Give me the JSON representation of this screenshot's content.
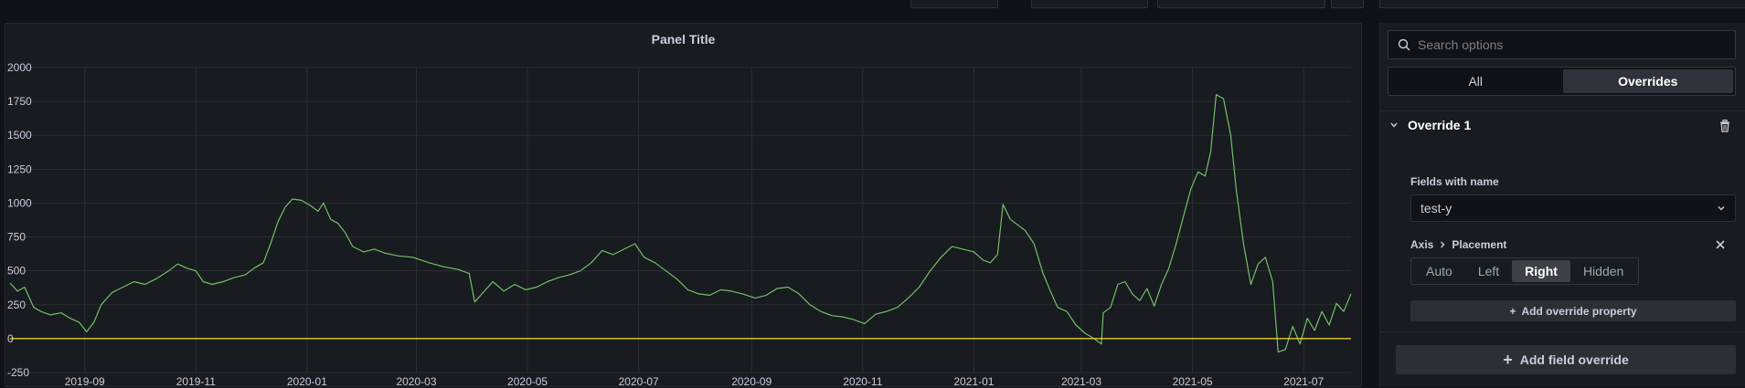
{
  "panel": {
    "title": "Panel Title"
  },
  "options": {
    "search": {
      "placeholder": "Search options"
    },
    "tabs": [
      {
        "label": "All",
        "active": false
      },
      {
        "label": "Overrides",
        "active": true
      }
    ],
    "override": {
      "title": "Override 1",
      "matcher_label": "Fields with name",
      "matcher_value": "test-y",
      "property_path": [
        "Axis",
        "Placement"
      ],
      "placement_options": [
        {
          "label": "Auto",
          "active": false
        },
        {
          "label": "Left",
          "active": false
        },
        {
          "label": "Right",
          "active": true
        },
        {
          "label": "Hidden",
          "active": false
        }
      ],
      "add_property_label": "Add override property"
    },
    "add_field_override_label": "Add field override"
  },
  "colors": {
    "series": "#73bf69",
    "zero_line": "#fade2a",
    "grid": "#2b2e33"
  },
  "chart_data": {
    "type": "line",
    "title": "Panel Title",
    "xlabel": "",
    "ylabel": "",
    "ylim": [
      -250,
      2000
    ],
    "y_ticks": [
      "-250",
      "0",
      "250",
      "500",
      "750",
      "1000",
      "1250",
      "1500",
      "1750",
      "2000"
    ],
    "y_tick_values": [
      -250,
      0,
      250,
      500,
      750,
      1000,
      1250,
      1500,
      1750,
      2000
    ],
    "x_ticks": [
      "2019-09",
      "2019-11",
      "2020-01",
      "2020-03",
      "2020-05",
      "2020-07",
      "2020-09",
      "2020-11",
      "2021-01",
      "2021-03",
      "2021-05",
      "2021-07"
    ],
    "xlim": [
      "2019-07-22",
      "2021-07-27"
    ],
    "grid": true,
    "series": [
      {
        "points": [
          [
            "2019-07-22",
            410
          ],
          [
            "2019-07-26",
            350
          ],
          [
            "2019-07-30",
            380
          ],
          [
            "2019-08-04",
            230
          ],
          [
            "2019-08-08",
            200
          ],
          [
            "2019-08-13",
            175
          ],
          [
            "2019-08-19",
            190
          ],
          [
            "2019-08-24",
            150
          ],
          [
            "2019-08-29",
            120
          ],
          [
            "2019-09-02",
            50
          ],
          [
            "2019-09-06",
            120
          ],
          [
            "2019-09-10",
            250
          ],
          [
            "2019-09-16",
            340
          ],
          [
            "2019-09-22",
            380
          ],
          [
            "2019-09-28",
            420
          ],
          [
            "2019-10-04",
            400
          ],
          [
            "2019-10-10",
            440
          ],
          [
            "2019-10-17",
            500
          ],
          [
            "2019-10-22",
            550
          ],
          [
            "2019-10-27",
            520
          ],
          [
            "2019-11-01",
            500
          ],
          [
            "2019-11-05",
            420
          ],
          [
            "2019-11-10",
            400
          ],
          [
            "2019-11-16",
            420
          ],
          [
            "2019-11-22",
            450
          ],
          [
            "2019-11-28",
            470
          ],
          [
            "2019-12-03",
            520
          ],
          [
            "2019-12-08",
            560
          ],
          [
            "2019-12-12",
            700
          ],
          [
            "2019-12-16",
            860
          ],
          [
            "2019-12-20",
            970
          ],
          [
            "2019-12-24",
            1030
          ],
          [
            "2019-12-29",
            1020
          ],
          [
            "2020-01-03",
            980
          ],
          [
            "2020-01-07",
            940
          ],
          [
            "2020-01-10",
            1000
          ],
          [
            "2020-01-14",
            880
          ],
          [
            "2020-01-18",
            850
          ],
          [
            "2020-01-22",
            780
          ],
          [
            "2020-01-26",
            680
          ],
          [
            "2020-02-01",
            640
          ],
          [
            "2020-02-07",
            660
          ],
          [
            "2020-02-13",
            630
          ],
          [
            "2020-02-20",
            610
          ],
          [
            "2020-02-28",
            600
          ],
          [
            "2020-03-08",
            560
          ],
          [
            "2020-03-16",
            530
          ],
          [
            "2020-03-24",
            510
          ],
          [
            "2020-03-30",
            480
          ],
          [
            "2020-04-02",
            270
          ],
          [
            "2020-04-06",
            330
          ],
          [
            "2020-04-12",
            420
          ],
          [
            "2020-04-18",
            350
          ],
          [
            "2020-04-24",
            400
          ],
          [
            "2020-04-30",
            360
          ],
          [
            "2020-05-06",
            380
          ],
          [
            "2020-05-12",
            420
          ],
          [
            "2020-05-18",
            450
          ],
          [
            "2020-05-24",
            470
          ],
          [
            "2020-05-30",
            500
          ],
          [
            "2020-06-05",
            560
          ],
          [
            "2020-06-11",
            650
          ],
          [
            "2020-06-17",
            620
          ],
          [
            "2020-06-23",
            660
          ],
          [
            "2020-06-29",
            700
          ],
          [
            "2020-07-04",
            600
          ],
          [
            "2020-07-10",
            560
          ],
          [
            "2020-07-16",
            500
          ],
          [
            "2020-07-22",
            440
          ],
          [
            "2020-07-28",
            360
          ],
          [
            "2020-08-03",
            330
          ],
          [
            "2020-08-09",
            320
          ],
          [
            "2020-08-15",
            360
          ],
          [
            "2020-08-21",
            350
          ],
          [
            "2020-08-27",
            330
          ],
          [
            "2020-09-03",
            300
          ],
          [
            "2020-09-09",
            320
          ],
          [
            "2020-09-15",
            370
          ],
          [
            "2020-09-21",
            380
          ],
          [
            "2020-09-27",
            330
          ],
          [
            "2020-10-03",
            250
          ],
          [
            "2020-10-09",
            200
          ],
          [
            "2020-10-15",
            170
          ],
          [
            "2020-10-21",
            160
          ],
          [
            "2020-10-27",
            140
          ],
          [
            "2020-11-02",
            110
          ],
          [
            "2020-11-08",
            180
          ],
          [
            "2020-11-14",
            200
          ],
          [
            "2020-11-20",
            230
          ],
          [
            "2020-11-26",
            300
          ],
          [
            "2020-12-02",
            380
          ],
          [
            "2020-12-08",
            500
          ],
          [
            "2020-12-14",
            600
          ],
          [
            "2020-12-20",
            680
          ],
          [
            "2020-12-26",
            660
          ],
          [
            "2021-01-01",
            640
          ],
          [
            "2021-01-06",
            580
          ],
          [
            "2021-01-10",
            560
          ],
          [
            "2021-01-14",
            620
          ],
          [
            "2021-01-17",
            990
          ],
          [
            "2021-01-21",
            880
          ],
          [
            "2021-01-25",
            840
          ],
          [
            "2021-01-29",
            800
          ],
          [
            "2021-02-03",
            700
          ],
          [
            "2021-02-08",
            480
          ],
          [
            "2021-02-12",
            350
          ],
          [
            "2021-02-16",
            230
          ],
          [
            "2021-02-21",
            200
          ],
          [
            "2021-02-26",
            100
          ],
          [
            "2021-03-03",
            40
          ],
          [
            "2021-03-08",
            0
          ],
          [
            "2021-03-12",
            -40
          ],
          [
            "2021-03-13",
            190
          ],
          [
            "2021-03-17",
            230
          ],
          [
            "2021-03-21",
            400
          ],
          [
            "2021-03-25",
            420
          ],
          [
            "2021-03-29",
            330
          ],
          [
            "2021-04-02",
            280
          ],
          [
            "2021-04-06",
            370
          ],
          [
            "2021-04-10",
            240
          ],
          [
            "2021-04-14",
            400
          ],
          [
            "2021-04-18",
            520
          ],
          [
            "2021-04-22",
            700
          ],
          [
            "2021-04-26",
            900
          ],
          [
            "2021-04-30",
            1100
          ],
          [
            "2021-05-04",
            1230
          ],
          [
            "2021-05-08",
            1200
          ],
          [
            "2021-05-11",
            1380
          ],
          [
            "2021-05-14",
            1800
          ],
          [
            "2021-05-18",
            1770
          ],
          [
            "2021-05-22",
            1500
          ],
          [
            "2021-05-25",
            1100
          ],
          [
            "2021-05-29",
            700
          ],
          [
            "2021-06-02",
            400
          ],
          [
            "2021-06-06",
            550
          ],
          [
            "2021-06-10",
            600
          ],
          [
            "2021-06-14",
            420
          ],
          [
            "2021-06-17",
            -100
          ],
          [
            "2021-06-21",
            -80
          ],
          [
            "2021-06-25",
            90
          ],
          [
            "2021-06-29",
            -40
          ],
          [
            "2021-07-03",
            150
          ],
          [
            "2021-07-07",
            60
          ],
          [
            "2021-07-11",
            200
          ],
          [
            "2021-07-15",
            100
          ],
          [
            "2021-07-19",
            260
          ],
          [
            "2021-07-23",
            200
          ],
          [
            "2021-07-27",
            330
          ]
        ]
      },
      {
        "points": [
          [
            "2019-07-22",
            0
          ],
          [
            "2021-07-27",
            0
          ]
        ]
      }
    ]
  }
}
